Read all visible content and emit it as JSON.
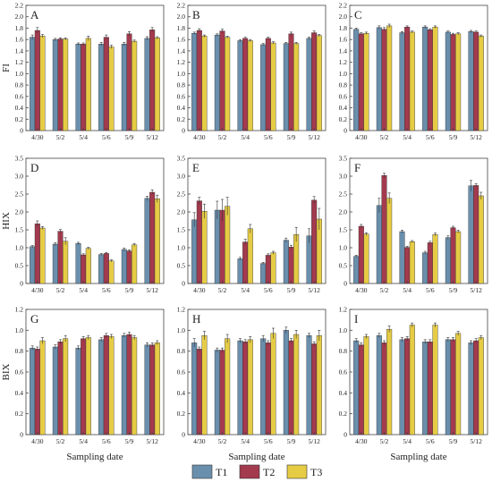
{
  "figure": {
    "xlabel": "Sampling date",
    "legend": [
      {
        "name": "T1",
        "color": "#6a8fad"
      },
      {
        "name": "T2",
        "color": "#a33a4e"
      },
      {
        "name": "T3",
        "color": "#e6cc45"
      }
    ]
  },
  "chart_data": [
    {
      "type": "bar",
      "panel": "A",
      "row_ylabel": "FI",
      "ylim": [
        0,
        2.2
      ],
      "yticks": [
        0,
        0.2,
        0.4,
        0.6,
        0.8,
        1.0,
        1.2,
        1.4,
        1.6,
        1.8,
        2.0,
        2.2
      ],
      "categories": [
        "4/30",
        "5/2",
        "5/4",
        "5/6",
        "5/9",
        "5/12"
      ],
      "series": [
        {
          "name": "T1",
          "values": [
            1.64,
            1.6,
            1.52,
            1.52,
            1.52,
            1.62
          ],
          "errors": [
            0.04,
            0.02,
            0.02,
            0.03,
            0.03,
            0.03
          ]
        },
        {
          "name": "T2",
          "values": [
            1.76,
            1.61,
            1.52,
            1.64,
            1.7,
            1.77
          ],
          "errors": [
            0.05,
            0.02,
            0.02,
            0.04,
            0.04,
            0.04
          ]
        },
        {
          "name": "T3",
          "values": [
            1.66,
            1.61,
            1.62,
            1.47,
            1.57,
            1.63
          ],
          "errors": [
            0.03,
            0.02,
            0.04,
            0.03,
            0.02,
            0.02
          ]
        }
      ]
    },
    {
      "type": "bar",
      "panel": "B",
      "ylim": [
        0,
        2.2
      ],
      "yticks": [
        0,
        0.2,
        0.4,
        0.6,
        0.8,
        1.0,
        1.2,
        1.4,
        1.6,
        1.8,
        2.0,
        2.2
      ],
      "categories": [
        "4/30",
        "5/2",
        "5/4",
        "5/6",
        "5/9",
        "5/12"
      ],
      "series": [
        {
          "name": "T1",
          "values": [
            1.71,
            1.68,
            1.58,
            1.51,
            1.53,
            1.62
          ],
          "errors": [
            0.02,
            0.02,
            0.02,
            0.02,
            0.02,
            0.02
          ]
        },
        {
          "name": "T2",
          "values": [
            1.76,
            1.75,
            1.62,
            1.62,
            1.7,
            1.72
          ],
          "errors": [
            0.03,
            0.03,
            0.02,
            0.02,
            0.03,
            0.03
          ]
        },
        {
          "name": "T3",
          "values": [
            1.66,
            1.64,
            1.58,
            1.54,
            1.53,
            1.67
          ],
          "errors": [
            0.02,
            0.02,
            0.02,
            0.02,
            0.02,
            0.02
          ]
        }
      ]
    },
    {
      "type": "bar",
      "panel": "C",
      "ylim": [
        0,
        2.2
      ],
      "yticks": [
        0,
        0.2,
        0.4,
        0.6,
        0.8,
        1.0,
        1.2,
        1.4,
        1.6,
        1.8,
        2.0,
        2.2
      ],
      "categories": [
        "4/30",
        "5/2",
        "5/4",
        "5/6",
        "5/9",
        "5/12"
      ],
      "series": [
        {
          "name": "T1",
          "values": [
            1.78,
            1.81,
            1.72,
            1.82,
            1.73,
            1.74
          ],
          "errors": [
            0.02,
            0.03,
            0.02,
            0.02,
            0.02,
            0.02
          ]
        },
        {
          "name": "T2",
          "values": [
            1.7,
            1.78,
            1.82,
            1.77,
            1.69,
            1.73
          ],
          "errors": [
            0.02,
            0.03,
            0.02,
            0.02,
            0.02,
            0.02
          ]
        },
        {
          "name": "T3",
          "values": [
            1.71,
            1.84,
            1.73,
            1.82,
            1.7,
            1.66
          ],
          "errors": [
            0.02,
            0.03,
            0.02,
            0.02,
            0.02,
            0.02
          ]
        }
      ]
    },
    {
      "type": "bar",
      "panel": "D",
      "row_ylabel": "HIX",
      "ylim": [
        0,
        3.5
      ],
      "yticks": [
        0,
        0.5,
        1.0,
        1.5,
        2.0,
        2.5,
        3.0,
        3.5
      ],
      "categories": [
        "4/30",
        "5/2",
        "5/4",
        "5/6",
        "5/9",
        "5/12"
      ],
      "series": [
        {
          "name": "T1",
          "values": [
            1.03,
            1.1,
            1.12,
            0.81,
            0.95,
            2.38
          ],
          "errors": [
            0.03,
            0.04,
            0.03,
            0.03,
            0.04,
            0.06
          ]
        },
        {
          "name": "T2",
          "values": [
            1.67,
            1.46,
            0.8,
            0.84,
            0.91,
            2.55
          ],
          "errors": [
            0.08,
            0.05,
            0.03,
            0.03,
            0.03,
            0.07
          ]
        },
        {
          "name": "T3",
          "values": [
            1.55,
            1.18,
            0.98,
            0.63,
            1.08,
            2.37
          ],
          "errors": [
            0.04,
            0.1,
            0.03,
            0.03,
            0.04,
            0.1
          ]
        }
      ]
    },
    {
      "type": "bar",
      "panel": "E",
      "ylim": [
        0,
        3.5
      ],
      "yticks": [
        0,
        0.5,
        1.0,
        1.5,
        2.0,
        2.5,
        3.0,
        3.5
      ],
      "categories": [
        "4/30",
        "5/2",
        "5/4",
        "5/6",
        "5/9",
        "5/12"
      ],
      "series": [
        {
          "name": "T1",
          "values": [
            1.78,
            2.05,
            0.69,
            0.56,
            1.21,
            1.33
          ],
          "errors": [
            0.2,
            0.25,
            0.04,
            0.03,
            0.06,
            0.2
          ]
        },
        {
          "name": "T2",
          "values": [
            2.31,
            2.05,
            1.16,
            0.79,
            1.02,
            2.33
          ],
          "errors": [
            0.1,
            0.3,
            0.08,
            0.04,
            0.05,
            0.1
          ]
        },
        {
          "name": "T3",
          "values": [
            2.02,
            2.16,
            1.53,
            0.86,
            1.37,
            1.8
          ],
          "errors": [
            0.2,
            0.25,
            0.12,
            0.04,
            0.2,
            0.3
          ]
        }
      ]
    },
    {
      "type": "bar",
      "panel": "F",
      "ylim": [
        0,
        3.5
      ],
      "yticks": [
        0,
        0.5,
        1.0,
        1.5,
        2.0,
        2.5,
        3.0,
        3.5
      ],
      "categories": [
        "4/30",
        "5/2",
        "5/4",
        "5/6",
        "5/9",
        "5/12"
      ],
      "series": [
        {
          "name": "T1",
          "values": [
            0.76,
            2.18,
            1.45,
            0.86,
            1.28,
            2.73
          ],
          "errors": [
            0.03,
            0.2,
            0.04,
            0.04,
            0.05,
            0.15
          ]
        },
        {
          "name": "T2",
          "values": [
            1.6,
            3.02,
            1.01,
            1.14,
            1.56,
            2.74
          ],
          "errors": [
            0.05,
            0.06,
            0.03,
            0.04,
            0.04,
            0.05
          ]
        },
        {
          "name": "T3",
          "values": [
            1.38,
            2.38,
            1.17,
            1.37,
            1.45,
            2.45
          ],
          "errors": [
            0.04,
            0.15,
            0.03,
            0.04,
            0.04,
            0.1
          ]
        }
      ]
    },
    {
      "type": "bar",
      "panel": "G",
      "row_ylabel": "BIX",
      "ylim": [
        0,
        1.2
      ],
      "yticks": [
        0,
        0.2,
        0.4,
        0.6,
        0.8,
        1.0,
        1.2
      ],
      "categories": [
        "4/30",
        "5/2",
        "5/4",
        "5/6",
        "5/9",
        "5/12"
      ],
      "series": [
        {
          "name": "T1",
          "values": [
            0.83,
            0.84,
            0.83,
            0.91,
            0.95,
            0.86
          ],
          "errors": [
            0.02,
            0.02,
            0.02,
            0.02,
            0.02,
            0.02
          ]
        },
        {
          "name": "T2",
          "values": [
            0.82,
            0.89,
            0.92,
            0.95,
            0.96,
            0.86
          ],
          "errors": [
            0.02,
            0.02,
            0.02,
            0.02,
            0.02,
            0.02
          ]
        },
        {
          "name": "T3",
          "values": [
            0.9,
            0.92,
            0.93,
            0.94,
            0.93,
            0.88
          ],
          "errors": [
            0.03,
            0.03,
            0.02,
            0.02,
            0.02,
            0.02
          ]
        }
      ]
    },
    {
      "type": "bar",
      "panel": "H",
      "ylim": [
        0,
        1.2
      ],
      "yticks": [
        0,
        0.2,
        0.4,
        0.6,
        0.8,
        1.0,
        1.2
      ],
      "categories": [
        "4/30",
        "5/2",
        "5/4",
        "5/6",
        "5/9",
        "5/12"
      ],
      "series": [
        {
          "name": "T1",
          "values": [
            0.88,
            0.81,
            0.9,
            0.92,
            1.0,
            0.95
          ],
          "errors": [
            0.04,
            0.02,
            0.02,
            0.03,
            0.03,
            0.02
          ]
        },
        {
          "name": "T2",
          "values": [
            0.82,
            0.81,
            0.89,
            0.88,
            0.9,
            0.87
          ],
          "errors": [
            0.02,
            0.02,
            0.02,
            0.02,
            0.02,
            0.02
          ]
        },
        {
          "name": "T3",
          "values": [
            0.95,
            0.92,
            0.91,
            0.97,
            0.96,
            0.95
          ],
          "errors": [
            0.04,
            0.04,
            0.03,
            0.05,
            0.04,
            0.05
          ]
        }
      ]
    },
    {
      "type": "bar",
      "panel": "I",
      "ylim": [
        0,
        1.2
      ],
      "yticks": [
        0,
        0.2,
        0.4,
        0.6,
        0.8,
        1.0,
        1.2
      ],
      "categories": [
        "4/30",
        "5/2",
        "5/4",
        "5/6",
        "5/9",
        "5/12"
      ],
      "series": [
        {
          "name": "T1",
          "values": [
            0.9,
            0.95,
            0.91,
            0.89,
            0.91,
            0.88
          ],
          "errors": [
            0.02,
            0.02,
            0.02,
            0.02,
            0.02,
            0.02
          ]
        },
        {
          "name": "T2",
          "values": [
            0.86,
            0.88,
            0.92,
            0.89,
            0.91,
            0.9
          ],
          "errors": [
            0.02,
            0.02,
            0.02,
            0.02,
            0.02,
            0.02
          ]
        },
        {
          "name": "T3",
          "values": [
            0.94,
            1.01,
            1.05,
            1.05,
            0.97,
            0.93
          ],
          "errors": [
            0.02,
            0.03,
            0.02,
            0.02,
            0.02,
            0.02
          ]
        }
      ]
    }
  ]
}
